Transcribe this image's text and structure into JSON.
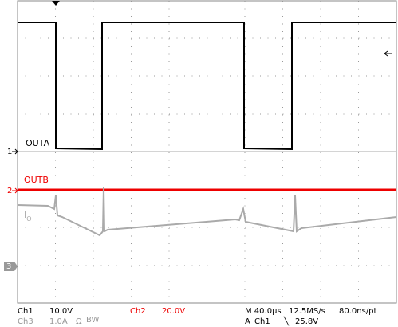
{
  "traces": [
    {
      "label": "OUTA",
      "marker": "1"
    },
    {
      "label": "OUTB",
      "marker": "2"
    },
    {
      "label": "I",
      "subscript": "O",
      "marker": "3"
    }
  ],
  "readout": {
    "row1": [
      "Ch1",
      "10.0V",
      "Ch2",
      "20.0V",
      "M 40.0µs",
      "12.5MS/s",
      "80.0ns/pt"
    ],
    "row2": [
      "Ch3",
      "1.0A",
      "Ω",
      "BW",
      "A",
      "Ch1",
      "╲",
      "25.8V"
    ]
  }
}
